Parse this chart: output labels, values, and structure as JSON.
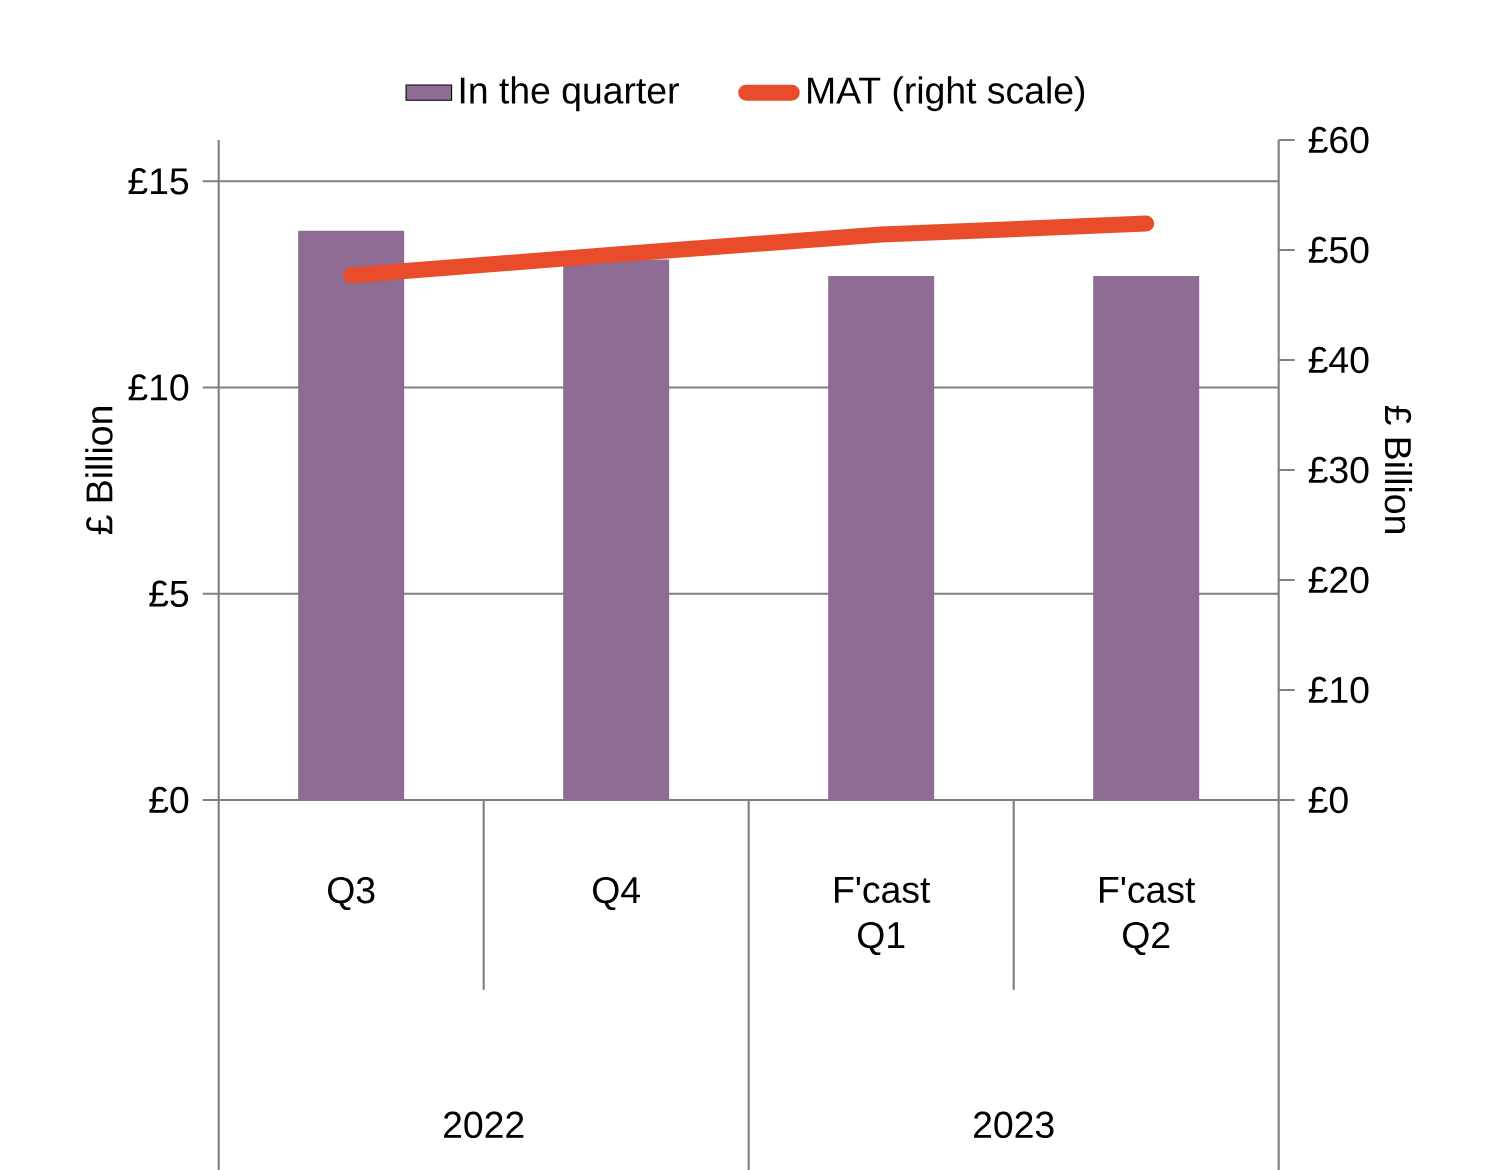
{
  "chart_data": {
    "type": "bar",
    "ylabel": "£ Billion",
    "y2label": "£ Billion",
    "categories": [
      "Q3",
      "Q4",
      "F'cast Q1",
      "F'cast Q2"
    ],
    "series": [
      {
        "name": "In the quarter",
        "color": "#8e6c94",
        "values": [
          13.8,
          13.1,
          12.7,
          12.7
        ]
      },
      {
        "name": "MAT (right scale)",
        "type": "line",
        "axis": "y2",
        "color": "#e84c2b",
        "values": [
          47.7,
          49.6,
          51.4,
          52.4
        ],
        "marker": "none",
        "line_style": "solid"
      }
    ],
    "ylim": [
      0,
      16
    ],
    "yticks": [
      {
        "value": 0,
        "label": "£0"
      },
      {
        "value": 5,
        "label": "£5"
      },
      {
        "value": 10,
        "label": "£10"
      },
      {
        "value": 15,
        "label": "£15"
      }
    ],
    "y2lim": [
      0,
      60
    ],
    "y2ticks": [
      {
        "value": 0,
        "label": "£0"
      },
      {
        "value": 10,
        "label": "£10"
      },
      {
        "value": 20,
        "label": "£20"
      },
      {
        "value": 30,
        "label": "£30"
      },
      {
        "value": 40,
        "label": "£40"
      },
      {
        "value": 50,
        "label": "£50"
      },
      {
        "value": 60,
        "label": "£60"
      }
    ],
    "annotations": [
      "2022",
      "2023"
    ],
    "grid": "y",
    "legend": "top"
  }
}
